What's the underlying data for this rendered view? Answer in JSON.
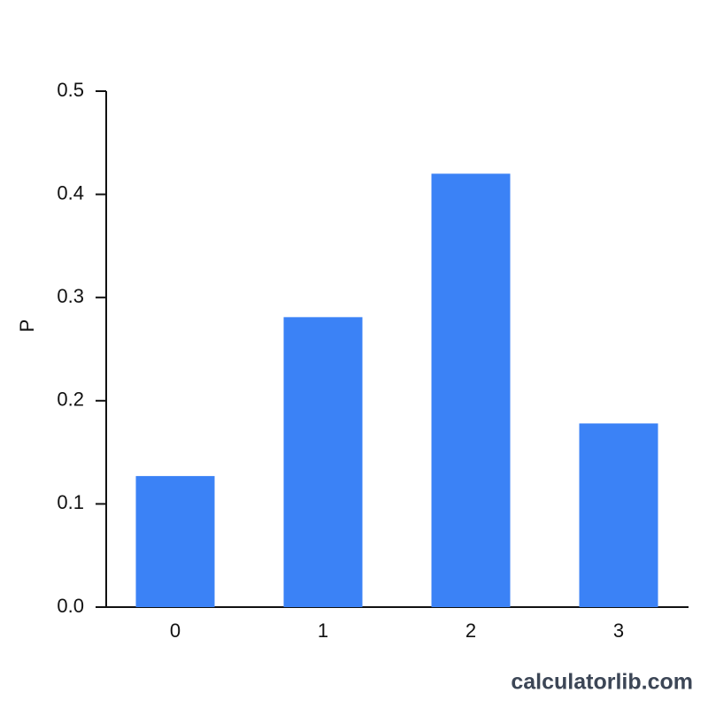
{
  "chart_data": {
    "type": "bar",
    "y_label": "P",
    "categories": [
      "0",
      "1",
      "2",
      "3"
    ],
    "values": [
      0.127,
      0.281,
      0.42,
      0.178
    ],
    "color": "#3b82f6",
    "ylim": [
      0,
      0.5
    ],
    "yticks": [
      {
        "value": 0,
        "label": "0.0"
      },
      0.1,
      0.2,
      0.3,
      0.4,
      0.5
    ],
    "watermark": "calculatorlib.com"
  }
}
